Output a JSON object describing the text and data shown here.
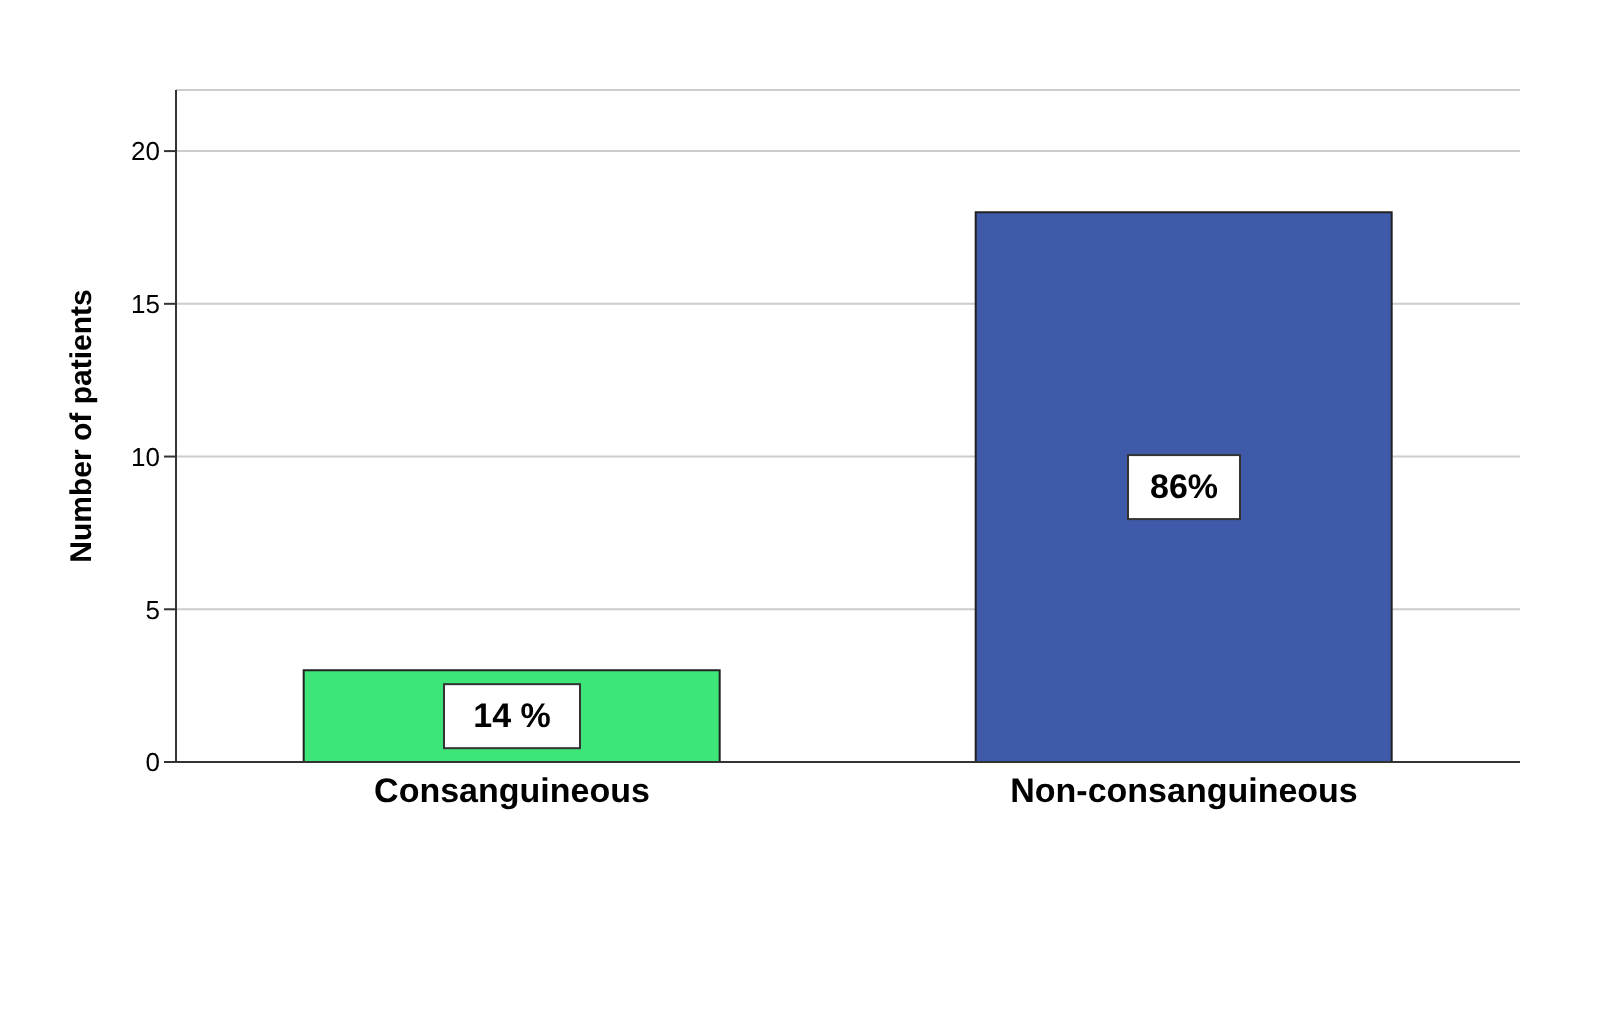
{
  "chart_data": {
    "type": "bar",
    "ylabel": "Number of patients",
    "categories": [
      "Consanguineous",
      "Non-consanguineous"
    ],
    "values": [
      3,
      18
    ],
    "colors": [
      "#3ee67a",
      "#3f5aa8"
    ],
    "annotations": [
      "14 %",
      "86%"
    ],
    "ylim": [
      0,
      22
    ],
    "yticks": [
      0,
      5,
      10,
      15,
      20
    ],
    "grid": "y"
  }
}
